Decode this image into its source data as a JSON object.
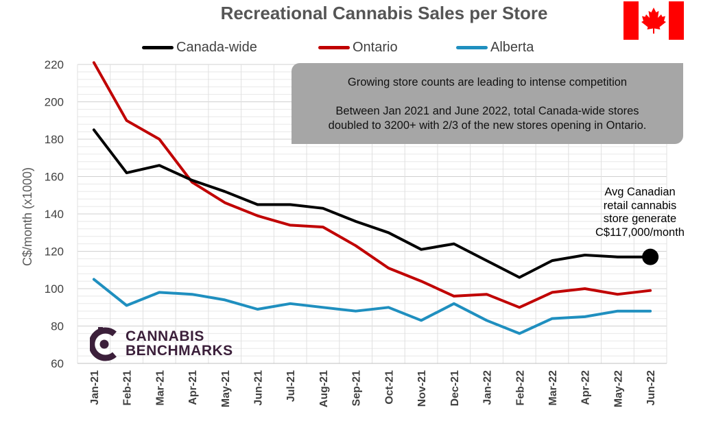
{
  "chart_data": {
    "type": "line",
    "title": "Recreational Cannabis Sales per Store",
    "ylabel": "C$/month (x1000)",
    "xlabel": "",
    "ylim": [
      60,
      220
    ],
    "yticks": [
      60,
      80,
      100,
      120,
      140,
      160,
      180,
      200,
      220
    ],
    "grid": true,
    "legend": "top",
    "categories": [
      "Jan-21",
      "Feb-21",
      "Mar-21",
      "Apr-21",
      "May-21",
      "Jun-21",
      "Jul-21",
      "Aug-21",
      "Sep-21",
      "Oct-21",
      "Nov-21",
      "Dec-21",
      "Jan-22",
      "Feb-22",
      "Mar-22",
      "Apr-22",
      "May-22",
      "Jun-22"
    ],
    "series": [
      {
        "name": "Canada-wide",
        "color": "#000000",
        "values": [
          185,
          162,
          166,
          158,
          152,
          145,
          145,
          143,
          136,
          130,
          121,
          124,
          115,
          106,
          115,
          118,
          117,
          117
        ]
      },
      {
        "name": "Ontario",
        "color": "#c00000",
        "values": [
          221,
          190,
          180,
          157,
          146,
          139,
          134,
          133,
          123,
          111,
          104,
          96,
          97,
          90,
          98,
          100,
          97,
          99
        ]
      },
      {
        "name": "Alberta",
        "color": "#1f8fbf",
        "values": [
          105,
          91,
          98,
          97,
          94,
          89,
          92,
          90,
          88,
          90,
          83,
          92,
          83,
          76,
          84,
          85,
          88,
          88
        ]
      }
    ],
    "callout": {
      "line1": "Growing store counts are leading to intense competition",
      "line2": "Between Jan 2021 and June 2022, total Canada-wide stores",
      "line3": "doubled to 3200+ with 2/3 of the new stores opening in Ontario."
    },
    "annotation": {
      "lines": [
        "Avg Canadian",
        "retail cannabis",
        "store generate",
        "C$117,000/month"
      ]
    }
  },
  "logo": {
    "line1": "CANNABIS",
    "line2": "BENCHMARKS",
    "color": "#3b1f3a"
  },
  "flag": {
    "icon": "canada-flag-icon",
    "red": "#ff0000"
  }
}
